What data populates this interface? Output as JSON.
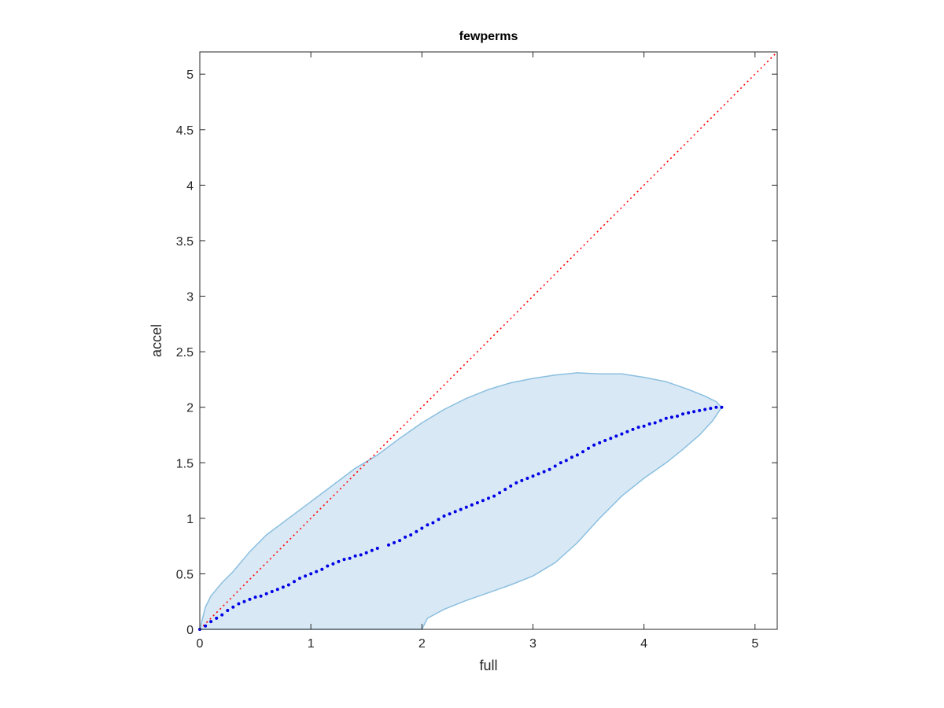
{
  "chart_data": {
    "type": "scatter",
    "title": "fewperms",
    "xlabel": "full",
    "ylabel": "accel",
    "xlim": [
      0,
      5.2
    ],
    "ylim": [
      0,
      5.2
    ],
    "xticks": [
      "0",
      "1",
      "2",
      "3",
      "4",
      "5"
    ],
    "yticks": [
      "0",
      "0.5",
      "1",
      "1.5",
      "2",
      "2.5",
      "3",
      "3.5",
      "4",
      "4.5",
      "5"
    ],
    "grid": false,
    "legend": "none",
    "colors": {
      "points": "#0000e6",
      "band_fill": "#d8e8f4",
      "band_edge": "#8bbfe0",
      "reference": "#ff0000",
      "axes": "#262626"
    },
    "reference_line": {
      "x": [
        0,
        5.2
      ],
      "y": [
        0,
        5.2
      ],
      "style": "dotted"
    },
    "band": {
      "upper": [
        [
          0,
          0
        ],
        [
          0.05,
          0.2
        ],
        [
          0.1,
          0.3
        ],
        [
          0.2,
          0.42
        ],
        [
          0.3,
          0.52
        ],
        [
          0.45,
          0.7
        ],
        [
          0.6,
          0.85
        ],
        [
          0.8,
          1.0
        ],
        [
          1.0,
          1.15
        ],
        [
          1.2,
          1.3
        ],
        [
          1.4,
          1.45
        ],
        [
          1.6,
          1.57
        ],
        [
          1.8,
          1.72
        ],
        [
          2.0,
          1.86
        ],
        [
          2.2,
          1.98
        ],
        [
          2.4,
          2.08
        ],
        [
          2.6,
          2.16
        ],
        [
          2.8,
          2.22
        ],
        [
          3.0,
          2.26
        ],
        [
          3.2,
          2.29
        ],
        [
          3.4,
          2.31
        ],
        [
          3.6,
          2.3
        ],
        [
          3.8,
          2.3
        ],
        [
          4.0,
          2.27
        ],
        [
          4.2,
          2.23
        ],
        [
          4.4,
          2.16
        ],
        [
          4.55,
          2.1
        ],
        [
          4.65,
          2.05
        ],
        [
          4.7,
          2.0
        ]
      ],
      "lower": [
        [
          4.7,
          2.0
        ],
        [
          4.62,
          1.88
        ],
        [
          4.5,
          1.75
        ],
        [
          4.35,
          1.62
        ],
        [
          4.2,
          1.5
        ],
        [
          4.0,
          1.36
        ],
        [
          3.8,
          1.2
        ],
        [
          3.6,
          1.0
        ],
        [
          3.4,
          0.78
        ],
        [
          3.2,
          0.6
        ],
        [
          3.0,
          0.48
        ],
        [
          2.8,
          0.4
        ],
        [
          2.6,
          0.33
        ],
        [
          2.4,
          0.26
        ],
        [
          2.2,
          0.18
        ],
        [
          2.05,
          0.1
        ],
        [
          2.0,
          0
        ]
      ]
    },
    "x": [
      0,
      0.05,
      0.1,
      0.15,
      0.2,
      0.25,
      0.3,
      0.35,
      0.4,
      0.45,
      0.5,
      0.55,
      0.6,
      0.65,
      0.7,
      0.75,
      0.8,
      0.85,
      0.9,
      0.95,
      1.0,
      1.05,
      1.1,
      1.15,
      1.2,
      1.25,
      1.3,
      1.35,
      1.4,
      1.45,
      1.5,
      1.55,
      1.6,
      1.7,
      1.75,
      1.8,
      1.85,
      1.9,
      1.95,
      2.0,
      2.05,
      2.1,
      2.15,
      2.2,
      2.25,
      2.3,
      2.35,
      2.4,
      2.45,
      2.5,
      2.55,
      2.6,
      2.65,
      2.7,
      2.75,
      2.8,
      2.85,
      2.9,
      2.95,
      3.0,
      3.05,
      3.1,
      3.15,
      3.2,
      3.25,
      3.3,
      3.35,
      3.4,
      3.45,
      3.5,
      3.55,
      3.6,
      3.65,
      3.7,
      3.75,
      3.8,
      3.85,
      3.9,
      3.95,
      4.0,
      4.05,
      4.1,
      4.15,
      4.2,
      4.25,
      4.3,
      4.35,
      4.4,
      4.45,
      4.5,
      4.55,
      4.6,
      4.65,
      4.7
    ],
    "y": [
      0,
      0.03,
      0.07,
      0.1,
      0.13,
      0.17,
      0.2,
      0.23,
      0.25,
      0.27,
      0.29,
      0.3,
      0.32,
      0.34,
      0.36,
      0.38,
      0.4,
      0.43,
      0.46,
      0.48,
      0.5,
      0.52,
      0.54,
      0.57,
      0.59,
      0.61,
      0.63,
      0.64,
      0.66,
      0.67,
      0.69,
      0.71,
      0.73,
      0.76,
      0.78,
      0.8,
      0.83,
      0.85,
      0.88,
      0.91,
      0.94,
      0.96,
      0.99,
      1.02,
      1.04,
      1.06,
      1.08,
      1.1,
      1.12,
      1.14,
      1.16,
      1.18,
      1.2,
      1.23,
      1.26,
      1.29,
      1.32,
      1.34,
      1.36,
      1.38,
      1.4,
      1.42,
      1.44,
      1.47,
      1.5,
      1.52,
      1.55,
      1.57,
      1.6,
      1.63,
      1.66,
      1.68,
      1.7,
      1.72,
      1.74,
      1.76,
      1.78,
      1.8,
      1.82,
      1.83,
      1.85,
      1.86,
      1.88,
      1.9,
      1.91,
      1.92,
      1.94,
      1.95,
      1.96,
      1.97,
      1.98,
      1.99,
      2.0,
      2.0
    ]
  }
}
